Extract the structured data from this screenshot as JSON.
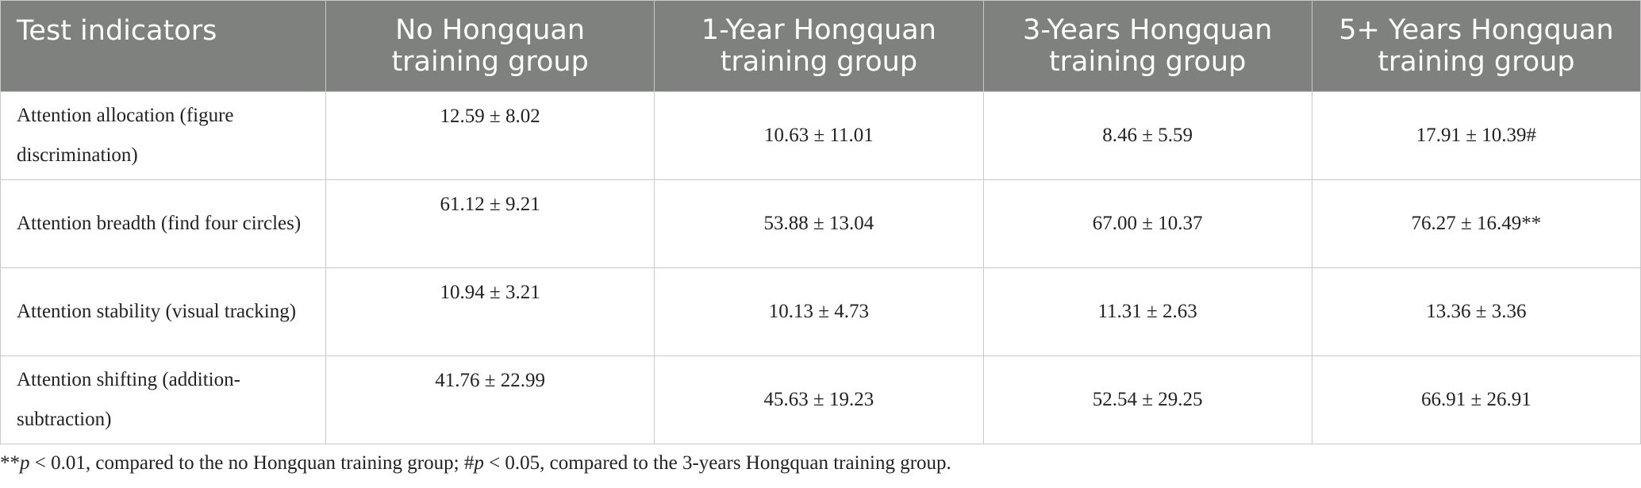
{
  "table": {
    "header": [
      "Test indicators",
      "No Hongquan training group",
      "1-Year Hongquan training group",
      "3-Years Hongquan training group",
      "5+ Years Hongquan training group"
    ],
    "rows": [
      [
        "Attention allocation (figure discrimination)",
        "12.59 ± 8.02",
        "10.63 ± 11.01",
        "8.46 ± 5.59",
        "17.91 ± 10.39#"
      ],
      [
        "Attention breadth (find four circles)",
        "61.12 ± 9.21",
        "53.88 ± 13.04",
        "67.00 ± 10.37",
        "76.27 ± 16.49**"
      ],
      [
        "Attention stability (visual tracking)",
        "10.94 ± 3.21",
        "10.13 ± 4.73",
        "11.31 ± 2.63",
        "13.36 ± 3.36"
      ],
      [
        "Attention shifting (addition-subtraction)",
        "41.76 ± 22.99",
        "45.63 ± 19.23",
        "52.54 ± 29.25",
        "66.91 ± 26.91"
      ]
    ]
  },
  "footnote": [
    "**",
    "p",
    " < 0.01, compared to the no Hongquan training group; #",
    "p",
    " < 0.05, compared to the 3-years Hongquan training group."
  ]
}
